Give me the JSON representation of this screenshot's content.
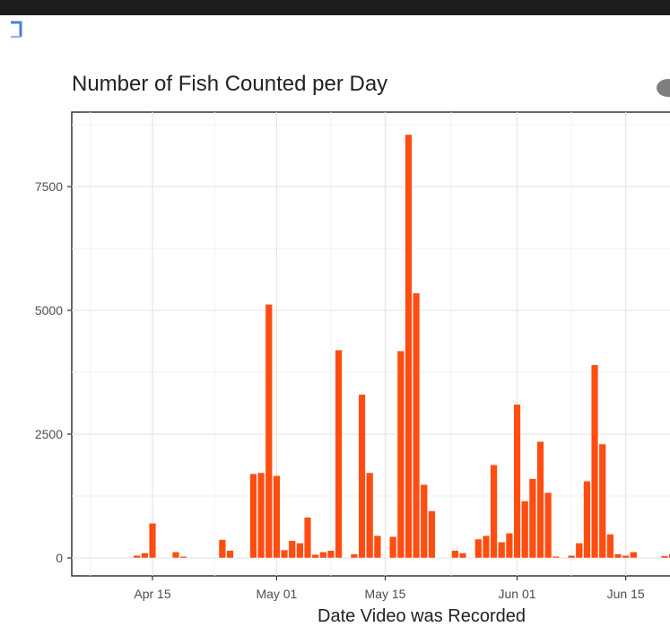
{
  "chart_data": {
    "type": "bar",
    "title": "Number of Fish Counted per Day",
    "xlabel": "Date Video was Recorded",
    "ylabel": "",
    "ylim": [
      0,
      8800
    ],
    "xlim": [
      "2020-04-06",
      "2020-06-23"
    ],
    "yticks": [
      0,
      2500,
      5000,
      7500
    ],
    "xticks": [
      {
        "date": "2020-04-15",
        "label": "Apr 15"
      },
      {
        "date": "2020-05-01",
        "label": "May 01"
      },
      {
        "date": "2020-05-15",
        "label": "May 15"
      },
      {
        "date": "2020-06-01",
        "label": "Jun 01"
      },
      {
        "date": "2020-06-15",
        "label": "Jun 15"
      }
    ],
    "grid": true,
    "bar_color": "#ff4d12",
    "x": [
      "2020-04-13",
      "2020-04-14",
      "2020-04-15",
      "2020-04-16",
      "2020-04-17",
      "2020-04-18",
      "2020-04-19",
      "2020-04-20",
      "2020-04-24",
      "2020-04-25",
      "2020-04-26",
      "2020-04-28",
      "2020-04-29",
      "2020-04-30",
      "2020-05-01",
      "2020-05-02",
      "2020-05-03",
      "2020-05-04",
      "2020-05-05",
      "2020-05-06",
      "2020-05-07",
      "2020-05-08",
      "2020-05-09",
      "2020-05-10",
      "2020-05-11",
      "2020-05-12",
      "2020-05-13",
      "2020-05-14",
      "2020-05-15",
      "2020-05-16",
      "2020-05-17",
      "2020-05-18",
      "2020-05-19",
      "2020-05-20",
      "2020-05-21",
      "2020-05-22",
      "2020-05-23",
      "2020-05-24",
      "2020-05-25",
      "2020-05-26",
      "2020-05-27",
      "2020-05-28",
      "2020-05-29",
      "2020-05-30",
      "2020-05-31",
      "2020-06-01",
      "2020-06-02",
      "2020-06-03",
      "2020-06-04",
      "2020-06-05",
      "2020-06-06",
      "2020-06-07",
      "2020-06-08",
      "2020-06-09",
      "2020-06-10",
      "2020-06-11",
      "2020-06-12",
      "2020-06-13",
      "2020-06-14",
      "2020-06-15",
      "2020-06-16",
      "2020-06-17",
      "2020-06-18",
      "2020-06-19",
      "2020-06-20",
      "2020-06-21"
    ],
    "values": [
      50,
      100,
      700,
      0,
      0,
      120,
      30,
      0,
      370,
      150,
      0,
      1700,
      1720,
      5120,
      1660,
      160,
      350,
      300,
      820,
      70,
      120,
      150,
      4200,
      0,
      80,
      3300,
      1720,
      450,
      0,
      430,
      4180,
      8550,
      5350,
      1480,
      950,
      0,
      0,
      150,
      100,
      0,
      380,
      450,
      1880,
      320,
      500,
      3100,
      1150,
      1600,
      2350,
      1320,
      30,
      0,
      50,
      300,
      1550,
      3900,
      2300,
      480,
      80,
      50,
      120,
      0,
      0,
      0,
      40,
      80
    ]
  }
}
